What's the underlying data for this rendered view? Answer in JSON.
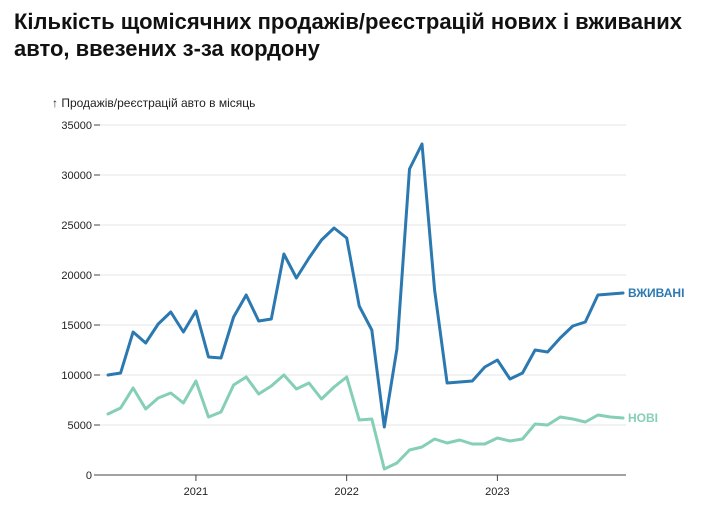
{
  "chart_data": {
    "type": "line",
    "title": "Кількість щомісячних продажів/реєстрацій нових і вживаних авто, ввезених з-за кордону",
    "ylabel": "↑ Продажів/реєстрацій авто в місяць",
    "xlabel": "",
    "ylim": [
      0,
      35000
    ],
    "yticks": [
      0,
      5000,
      10000,
      15000,
      20000,
      25000,
      30000,
      35000
    ],
    "xticks": [
      "2021",
      "2022",
      "2023"
    ],
    "x": [
      "2020-06",
      "2020-07",
      "2020-08",
      "2020-09",
      "2020-10",
      "2020-11",
      "2020-12",
      "2021-01",
      "2021-02",
      "2021-03",
      "2021-04",
      "2021-05",
      "2021-06",
      "2021-07",
      "2021-08",
      "2021-09",
      "2021-10",
      "2021-11",
      "2021-12",
      "2022-01",
      "2022-02",
      "2022-03",
      "2022-04",
      "2022-05",
      "2022-06",
      "2022-07",
      "2022-08",
      "2022-09",
      "2022-10",
      "2022-11",
      "2022-12",
      "2023-01",
      "2023-02",
      "2023-03",
      "2023-04",
      "2023-05",
      "2023-06",
      "2023-07",
      "2023-08",
      "2023-09",
      "2023-10",
      "2023-11"
    ],
    "grid": true,
    "series": [
      {
        "name": "ВЖИВАНІ",
        "color": "#2b79b0",
        "values": [
          10000,
          10200,
          14300,
          13200,
          15100,
          16300,
          14300,
          16400,
          11800,
          11700,
          15800,
          18000,
          15400,
          15600,
          22100,
          19700,
          21700,
          23500,
          24700,
          23700,
          16900,
          14500,
          4800,
          12600,
          30600,
          33100,
          18500,
          9200,
          9300,
          9400,
          10800,
          11500,
          9600,
          10200,
          12500,
          12300,
          13700,
          14900,
          15300,
          18000,
          18100,
          18200
        ]
      },
      {
        "name": "НОВІ",
        "color": "#84cfb6",
        "values": [
          6100,
          6700,
          8700,
          6600,
          7700,
          8200,
          7200,
          9400,
          5800,
          6300,
          9000,
          9800,
          8100,
          8900,
          10000,
          8600,
          9200,
          7600,
          8800,
          9800,
          5500,
          5600,
          600,
          1200,
          2500,
          2800,
          3600,
          3200,
          3500,
          3100,
          3100,
          3700,
          3400,
          3600,
          5100,
          5000,
          5800,
          5600,
          5300,
          6000,
          5800,
          5700
        ]
      }
    ]
  }
}
